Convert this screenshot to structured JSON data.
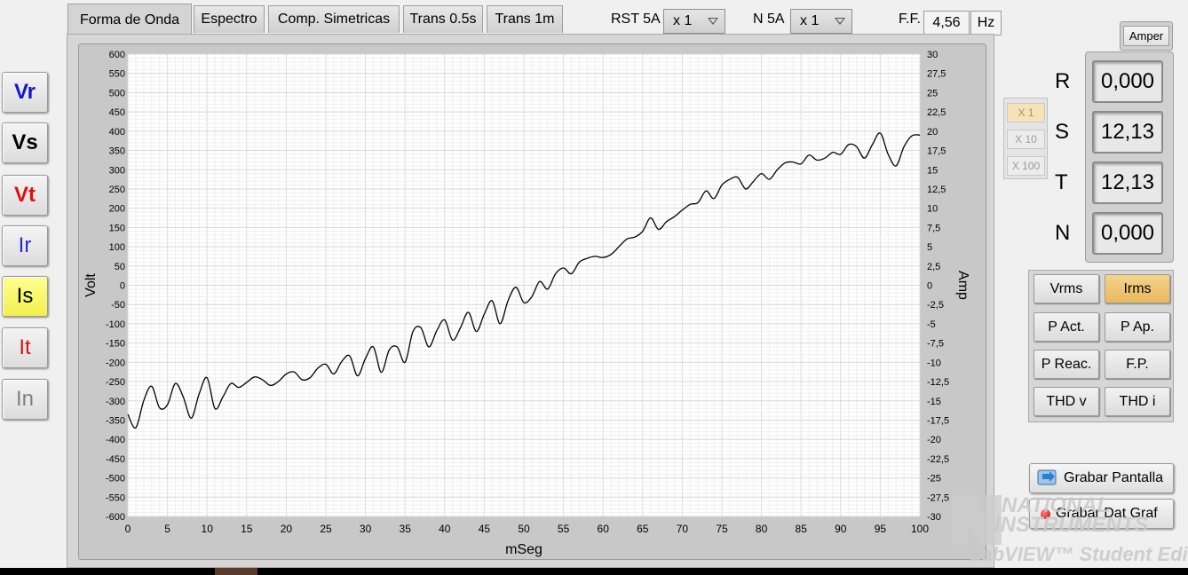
{
  "tabs": [
    "Forma de Onda",
    "Espectro",
    "Comp. Simetricas",
    "Trans 0.5s",
    "Trans 1m"
  ],
  "active_tab": 0,
  "rst_range": {
    "label": "RST 5A",
    "value": "x 1"
  },
  "n_range": {
    "label": "N 5A",
    "value": "x 1"
  },
  "frequency": {
    "label": "F.F.",
    "value": "4,56",
    "unit": "Hz"
  },
  "channels": [
    {
      "label": "Vr",
      "color": "#1515d0",
      "bold": true,
      "selected": false
    },
    {
      "label": "Vs",
      "color": "#000000",
      "bold": true,
      "selected": false
    },
    {
      "label": "Vt",
      "color": "#e01010",
      "bold": true,
      "selected": false
    },
    {
      "label": "Ir",
      "color": "#2a2ad0",
      "bold": false,
      "selected": false
    },
    {
      "label": "Is",
      "color": "#000000",
      "bold": false,
      "selected": true
    },
    {
      "label": "It",
      "color": "#e01010",
      "bold": false,
      "selected": false
    },
    {
      "label": "In",
      "color": "#808080",
      "bold": false,
      "selected": false
    }
  ],
  "unit_button": "Amper",
  "readings": [
    {
      "phase": "R",
      "value": "0,000"
    },
    {
      "phase": "S",
      "value": "12,13"
    },
    {
      "phase": "T",
      "value": "12,13"
    },
    {
      "phase": "N",
      "value": "0,000"
    }
  ],
  "scale_buttons": [
    "X 1",
    "X 10",
    "X 100"
  ],
  "function_buttons": [
    {
      "label": "Vrms",
      "active": false
    },
    {
      "label": "Irms",
      "active": true
    },
    {
      "label": "P Act.",
      "active": false
    },
    {
      "label": "P Ap.",
      "active": false
    },
    {
      "label": "P Reac.",
      "active": false
    },
    {
      "label": "F.P.",
      "active": false
    },
    {
      "label": "THD v",
      "active": false
    },
    {
      "label": "THD i",
      "active": false
    }
  ],
  "save_screen_label": "Grabar Pantalla",
  "save_data_label": "Grabar Dat Graf",
  "watermark": {
    "line1": "NATIONAL",
    "line2": "INSTRUMENTS",
    "line3": "LabVIEW™ Student Edition"
  },
  "chart_data": {
    "type": "line",
    "xlabel": "mSeg",
    "ylabel": "Volt",
    "ylabel_right": "Amp",
    "xlim": [
      0,
      100
    ],
    "ylim": [
      -600,
      600
    ],
    "ylim_right": [
      -30,
      30
    ],
    "x_ticks": [
      0,
      5,
      10,
      15,
      20,
      25,
      30,
      35,
      40,
      45,
      50,
      55,
      60,
      65,
      70,
      75,
      80,
      85,
      90,
      95,
      100
    ],
    "y_ticks": [
      600,
      550,
      500,
      450,
      400,
      350,
      300,
      250,
      200,
      150,
      100,
      50,
      0,
      -50,
      -100,
      -150,
      -200,
      -250,
      -300,
      -350,
      -400,
      -450,
      -500,
      -550,
      -600
    ],
    "y_ticks_right": [
      "30",
      "27,5",
      "25",
      "22,5",
      "20",
      "17,5",
      "15",
      "12,5",
      "10",
      "7,5",
      "5",
      "2,5",
      "0",
      "-2,5",
      "-5",
      "-7,5",
      "-10",
      "-12,5",
      "-15",
      "-17,5",
      "-20",
      "-22,5",
      "-25",
      "-27,5",
      "-30"
    ],
    "grid": true,
    "series": [
      {
        "color": "#000000",
        "x": [
          0,
          1,
          2,
          3,
          4,
          5,
          6,
          7,
          8,
          9,
          10,
          11,
          12,
          13,
          14,
          15,
          16,
          17,
          18,
          19,
          20,
          21,
          22,
          23,
          24,
          25,
          26,
          27,
          28,
          29,
          30,
          31,
          32,
          33,
          34,
          35,
          36,
          37,
          38,
          39,
          40,
          41,
          42,
          43,
          44,
          45,
          46,
          47,
          48,
          49,
          50,
          51,
          52,
          53,
          54,
          55,
          56,
          57,
          58,
          59,
          60,
          61,
          62,
          63,
          64,
          65,
          66,
          67,
          68,
          69,
          70,
          71,
          72,
          73,
          74,
          75,
          76,
          77,
          78,
          79,
          80,
          81,
          82,
          83,
          84,
          85,
          86,
          87,
          88,
          89,
          90,
          91,
          92,
          93,
          94,
          95,
          96,
          97,
          98,
          99,
          100
        ],
        "y": [
          -335,
          -370,
          -300,
          -262,
          -318,
          -310,
          -255,
          -290,
          -345,
          -282,
          -240,
          -320,
          -290,
          -255,
          -265,
          -252,
          -238,
          -245,
          -260,
          -250,
          -230,
          -225,
          -245,
          -240,
          -215,
          -205,
          -230,
          -198,
          -183,
          -235,
          -190,
          -160,
          -226,
          -168,
          -160,
          -200,
          -120,
          -110,
          -160,
          -118,
          -90,
          -142,
          -110,
          -70,
          -120,
          -75,
          -40,
          -100,
          -40,
          -5,
          -45,
          -30,
          10,
          -10,
          30,
          45,
          30,
          60,
          70,
          75,
          72,
          80,
          100,
          120,
          125,
          140,
          175,
          145,
          165,
          178,
          195,
          210,
          215,
          245,
          225,
          260,
          275,
          280,
          250,
          270,
          290,
          275,
          300,
          318,
          320,
          315,
          338,
          325,
          330,
          345,
          340,
          365,
          360,
          330,
          365,
          395,
          340,
          310,
          360,
          388,
          390
        ]
      }
    ]
  }
}
